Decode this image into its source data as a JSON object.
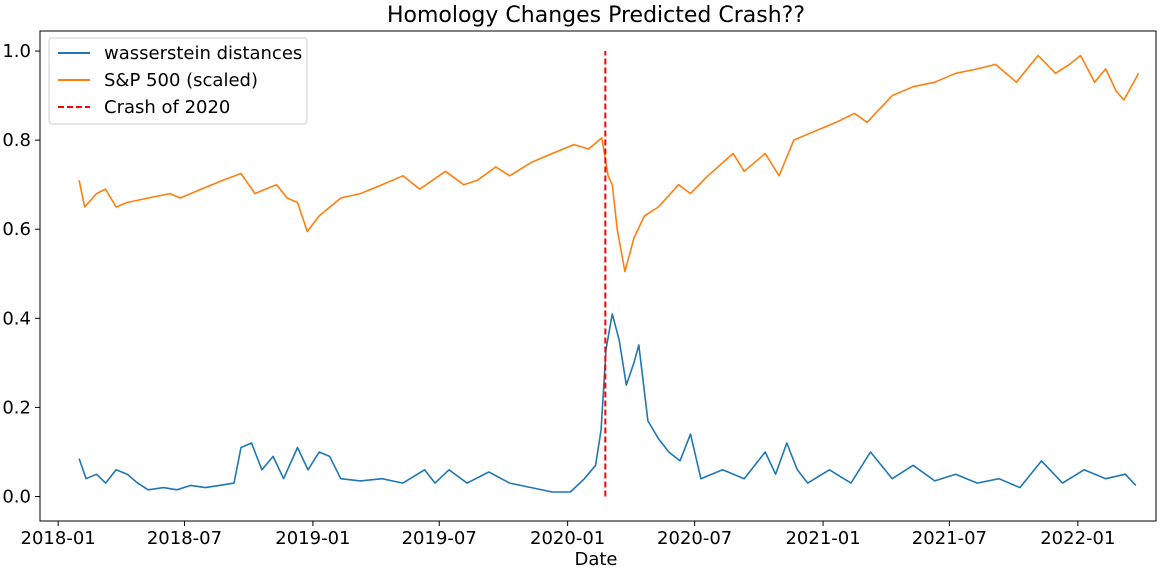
{
  "chart_data": {
    "type": "line",
    "title": "Homology Changes Predicted Crash??",
    "xlabel": "Date",
    "ylabel": "",
    "x_ticks": [
      "2018-01",
      "2018-07",
      "2019-01",
      "2019-07",
      "2020-01",
      "2020-07",
      "2021-01",
      "2021-07",
      "2022-01"
    ],
    "y_ticks": [
      "0.0",
      "0.2",
      "0.4",
      "0.6",
      "0.8",
      "1.0"
    ],
    "xlim": [
      "2017-12-06",
      "2022-04-23"
    ],
    "ylim": [
      -0.055,
      1.045
    ],
    "grid": false,
    "legend_position": "upper-left",
    "series": [
      {
        "name": "wasserstein distances",
        "color": "#1f77b4",
        "points": [
          [
            "2018-01-31",
            0.085
          ],
          [
            "2018-02-10",
            0.04
          ],
          [
            "2018-02-25",
            0.05
          ],
          [
            "2018-03-10",
            0.03
          ],
          [
            "2018-03-25",
            0.06
          ],
          [
            "2018-04-10",
            0.05
          ],
          [
            "2018-04-25",
            0.03
          ],
          [
            "2018-05-10",
            0.015
          ],
          [
            "2018-06-01",
            0.02
          ],
          [
            "2018-06-20",
            0.015
          ],
          [
            "2018-07-10",
            0.025
          ],
          [
            "2018-07-31",
            0.02
          ],
          [
            "2018-08-20",
            0.025
          ],
          [
            "2018-09-10",
            0.03
          ],
          [
            "2018-09-20",
            0.11
          ],
          [
            "2018-10-05",
            0.12
          ],
          [
            "2018-10-20",
            0.06
          ],
          [
            "2018-11-05",
            0.09
          ],
          [
            "2018-11-20",
            0.04
          ],
          [
            "2018-12-10",
            0.11
          ],
          [
            "2018-12-25",
            0.06
          ],
          [
            "2019-01-10",
            0.1
          ],
          [
            "2019-01-25",
            0.09
          ],
          [
            "2019-02-10",
            0.04
          ],
          [
            "2019-03-10",
            0.035
          ],
          [
            "2019-04-10",
            0.04
          ],
          [
            "2019-05-10",
            0.03
          ],
          [
            "2019-06-10",
            0.06
          ],
          [
            "2019-06-25",
            0.03
          ],
          [
            "2019-07-15",
            0.06
          ],
          [
            "2019-08-10",
            0.03
          ],
          [
            "2019-09-10",
            0.055
          ],
          [
            "2019-10-10",
            0.03
          ],
          [
            "2019-11-10",
            0.02
          ],
          [
            "2019-12-10",
            0.01
          ],
          [
            "2020-01-05",
            0.01
          ],
          [
            "2020-01-25",
            0.04
          ],
          [
            "2020-02-10",
            0.07
          ],
          [
            "2020-02-18",
            0.15
          ],
          [
            "2020-02-25",
            0.33
          ],
          [
            "2020-03-05",
            0.41
          ],
          [
            "2020-03-15",
            0.35
          ],
          [
            "2020-03-25",
            0.25
          ],
          [
            "2020-04-05",
            0.3
          ],
          [
            "2020-04-12",
            0.34
          ],
          [
            "2020-04-25",
            0.17
          ],
          [
            "2020-05-10",
            0.13
          ],
          [
            "2020-05-25",
            0.1
          ],
          [
            "2020-06-10",
            0.08
          ],
          [
            "2020-06-25",
            0.14
          ],
          [
            "2020-07-10",
            0.04
          ],
          [
            "2020-08-10",
            0.06
          ],
          [
            "2020-09-10",
            0.04
          ],
          [
            "2020-10-10",
            0.1
          ],
          [
            "2020-10-25",
            0.05
          ],
          [
            "2020-11-10",
            0.12
          ],
          [
            "2020-11-25",
            0.06
          ],
          [
            "2020-12-10",
            0.03
          ],
          [
            "2021-01-10",
            0.06
          ],
          [
            "2021-02-10",
            0.03
          ],
          [
            "2021-03-10",
            0.1
          ],
          [
            "2021-04-10",
            0.04
          ],
          [
            "2021-05-10",
            0.07
          ],
          [
            "2021-06-10",
            0.035
          ],
          [
            "2021-07-10",
            0.05
          ],
          [
            "2021-08-10",
            0.03
          ],
          [
            "2021-09-10",
            0.04
          ],
          [
            "2021-10-10",
            0.02
          ],
          [
            "2021-11-10",
            0.08
          ],
          [
            "2021-12-10",
            0.03
          ],
          [
            "2022-01-10",
            0.06
          ],
          [
            "2022-02-10",
            0.04
          ],
          [
            "2022-03-10",
            0.05
          ],
          [
            "2022-03-25",
            0.025
          ]
        ]
      },
      {
        "name": "S&P 500 (scaled)",
        "color": "#ff7f0e",
        "points": [
          [
            "2018-01-31",
            0.71
          ],
          [
            "2018-02-08",
            0.65
          ],
          [
            "2018-02-25",
            0.68
          ],
          [
            "2018-03-10",
            0.69
          ],
          [
            "2018-03-25",
            0.65
          ],
          [
            "2018-04-10",
            0.66
          ],
          [
            "2018-05-10",
            0.67
          ],
          [
            "2018-06-10",
            0.68
          ],
          [
            "2018-06-25",
            0.67
          ],
          [
            "2018-07-25",
            0.69
          ],
          [
            "2018-08-25",
            0.71
          ],
          [
            "2018-09-20",
            0.725
          ],
          [
            "2018-10-10",
            0.68
          ],
          [
            "2018-10-25",
            0.69
          ],
          [
            "2018-11-10",
            0.7
          ],
          [
            "2018-11-25",
            0.67
          ],
          [
            "2018-12-10",
            0.66
          ],
          [
            "2018-12-24",
            0.595
          ],
          [
            "2019-01-10",
            0.63
          ],
          [
            "2019-02-10",
            0.67
          ],
          [
            "2019-03-10",
            0.68
          ],
          [
            "2019-04-10",
            0.7
          ],
          [
            "2019-05-10",
            0.72
          ],
          [
            "2019-06-03",
            0.69
          ],
          [
            "2019-07-10",
            0.73
          ],
          [
            "2019-08-05",
            0.7
          ],
          [
            "2019-08-25",
            0.71
          ],
          [
            "2019-09-20",
            0.74
          ],
          [
            "2019-10-10",
            0.72
          ],
          [
            "2019-11-10",
            0.75
          ],
          [
            "2019-12-10",
            0.77
          ],
          [
            "2020-01-10",
            0.79
          ],
          [
            "2020-01-31",
            0.78
          ],
          [
            "2020-02-19",
            0.805
          ],
          [
            "2020-02-28",
            0.72
          ],
          [
            "2020-03-05",
            0.7
          ],
          [
            "2020-03-12",
            0.6
          ],
          [
            "2020-03-23",
            0.505
          ],
          [
            "2020-04-05",
            0.58
          ],
          [
            "2020-04-20",
            0.63
          ],
          [
            "2020-05-10",
            0.65
          ],
          [
            "2020-06-08",
            0.7
          ],
          [
            "2020-06-25",
            0.68
          ],
          [
            "2020-07-20",
            0.72
          ],
          [
            "2020-08-25",
            0.77
          ],
          [
            "2020-09-10",
            0.73
          ],
          [
            "2020-10-10",
            0.77
          ],
          [
            "2020-10-30",
            0.72
          ],
          [
            "2020-11-20",
            0.8
          ],
          [
            "2020-12-20",
            0.82
          ],
          [
            "2021-01-20",
            0.84
          ],
          [
            "2021-02-15",
            0.86
          ],
          [
            "2021-03-05",
            0.84
          ],
          [
            "2021-04-10",
            0.9
          ],
          [
            "2021-05-10",
            0.92
          ],
          [
            "2021-06-10",
            0.93
          ],
          [
            "2021-07-10",
            0.95
          ],
          [
            "2021-08-10",
            0.96
          ],
          [
            "2021-09-05",
            0.97
          ],
          [
            "2021-10-05",
            0.93
          ],
          [
            "2021-11-05",
            0.99
          ],
          [
            "2021-11-30",
            0.95
          ],
          [
            "2021-12-20",
            0.97
          ],
          [
            "2022-01-05",
            0.99
          ],
          [
            "2022-01-25",
            0.93
          ],
          [
            "2022-02-10",
            0.96
          ],
          [
            "2022-02-25",
            0.91
          ],
          [
            "2022-03-08",
            0.89
          ],
          [
            "2022-03-29",
            0.95
          ]
        ]
      }
    ],
    "annotations": [
      {
        "type": "vline",
        "name": "Crash of 2020",
        "x": "2020-02-24",
        "y_range": [
          0.0,
          1.0
        ],
        "color": "#ff0000",
        "style": "dashed"
      }
    ]
  }
}
